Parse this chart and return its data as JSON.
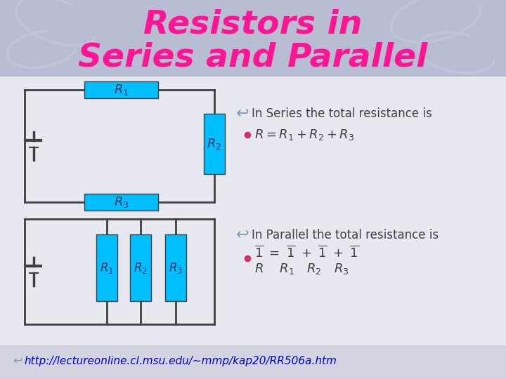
{
  "title_line1": "Resistors in",
  "title_line2": "Series and Parallel",
  "title_color": "#FF1493",
  "bg_color": "#E8E8F0",
  "header_bg": "#B8BDD4",
  "resistor_color": "#00BFFF",
  "wire_color": "#404040",
  "text_color": "#404040",
  "url_text": "http://lectureonline.cl.msu.edu/~mmp/kap20/RR506a.htm",
  "series_label": "In Series the total resistance is",
  "parallel_label": "In Parallel the total resistance is"
}
